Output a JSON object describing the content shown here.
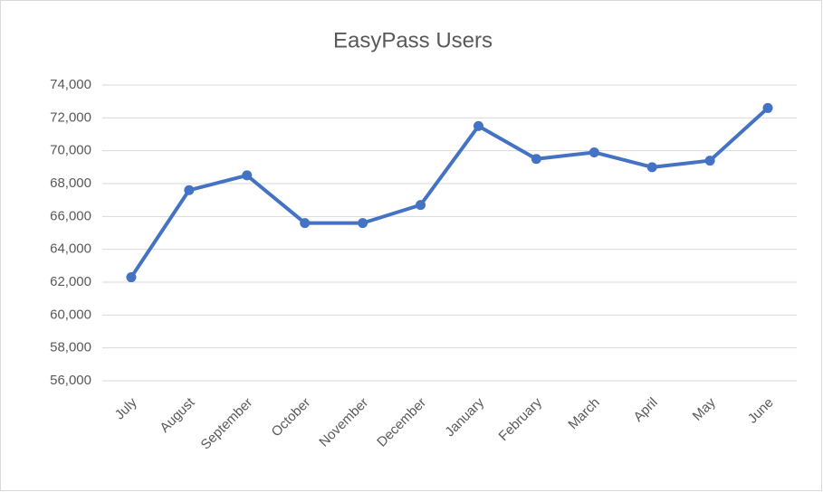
{
  "chart_data": {
    "type": "line",
    "title": "EasyPass Users",
    "categories": [
      "July",
      "August",
      "September",
      "October",
      "November",
      "December",
      "January",
      "February",
      "March",
      "April",
      "May",
      "June"
    ],
    "series": [
      {
        "name": "EasyPass Users",
        "color": "#4472c4",
        "values": [
          62300,
          67600,
          68500,
          65600,
          65600,
          66700,
          71500,
          69500,
          69900,
          69000,
          69400,
          72600
        ]
      }
    ],
    "ylim": [
      56000,
      74000
    ],
    "yticks": [
      {
        "value": 56000,
        "label": "56,000"
      },
      {
        "value": 58000,
        "label": "58,000"
      },
      {
        "value": 60000,
        "label": "60,000"
      },
      {
        "value": 62000,
        "label": "62,000"
      },
      {
        "value": 64000,
        "label": "64,000"
      },
      {
        "value": 66000,
        "label": "66,000"
      },
      {
        "value": 68000,
        "label": "68,000"
      },
      {
        "value": 70000,
        "label": "70,000"
      },
      {
        "value": 72000,
        "label": "72,000"
      },
      {
        "value": 74000,
        "label": "74,000"
      }
    ],
    "grid": true
  }
}
